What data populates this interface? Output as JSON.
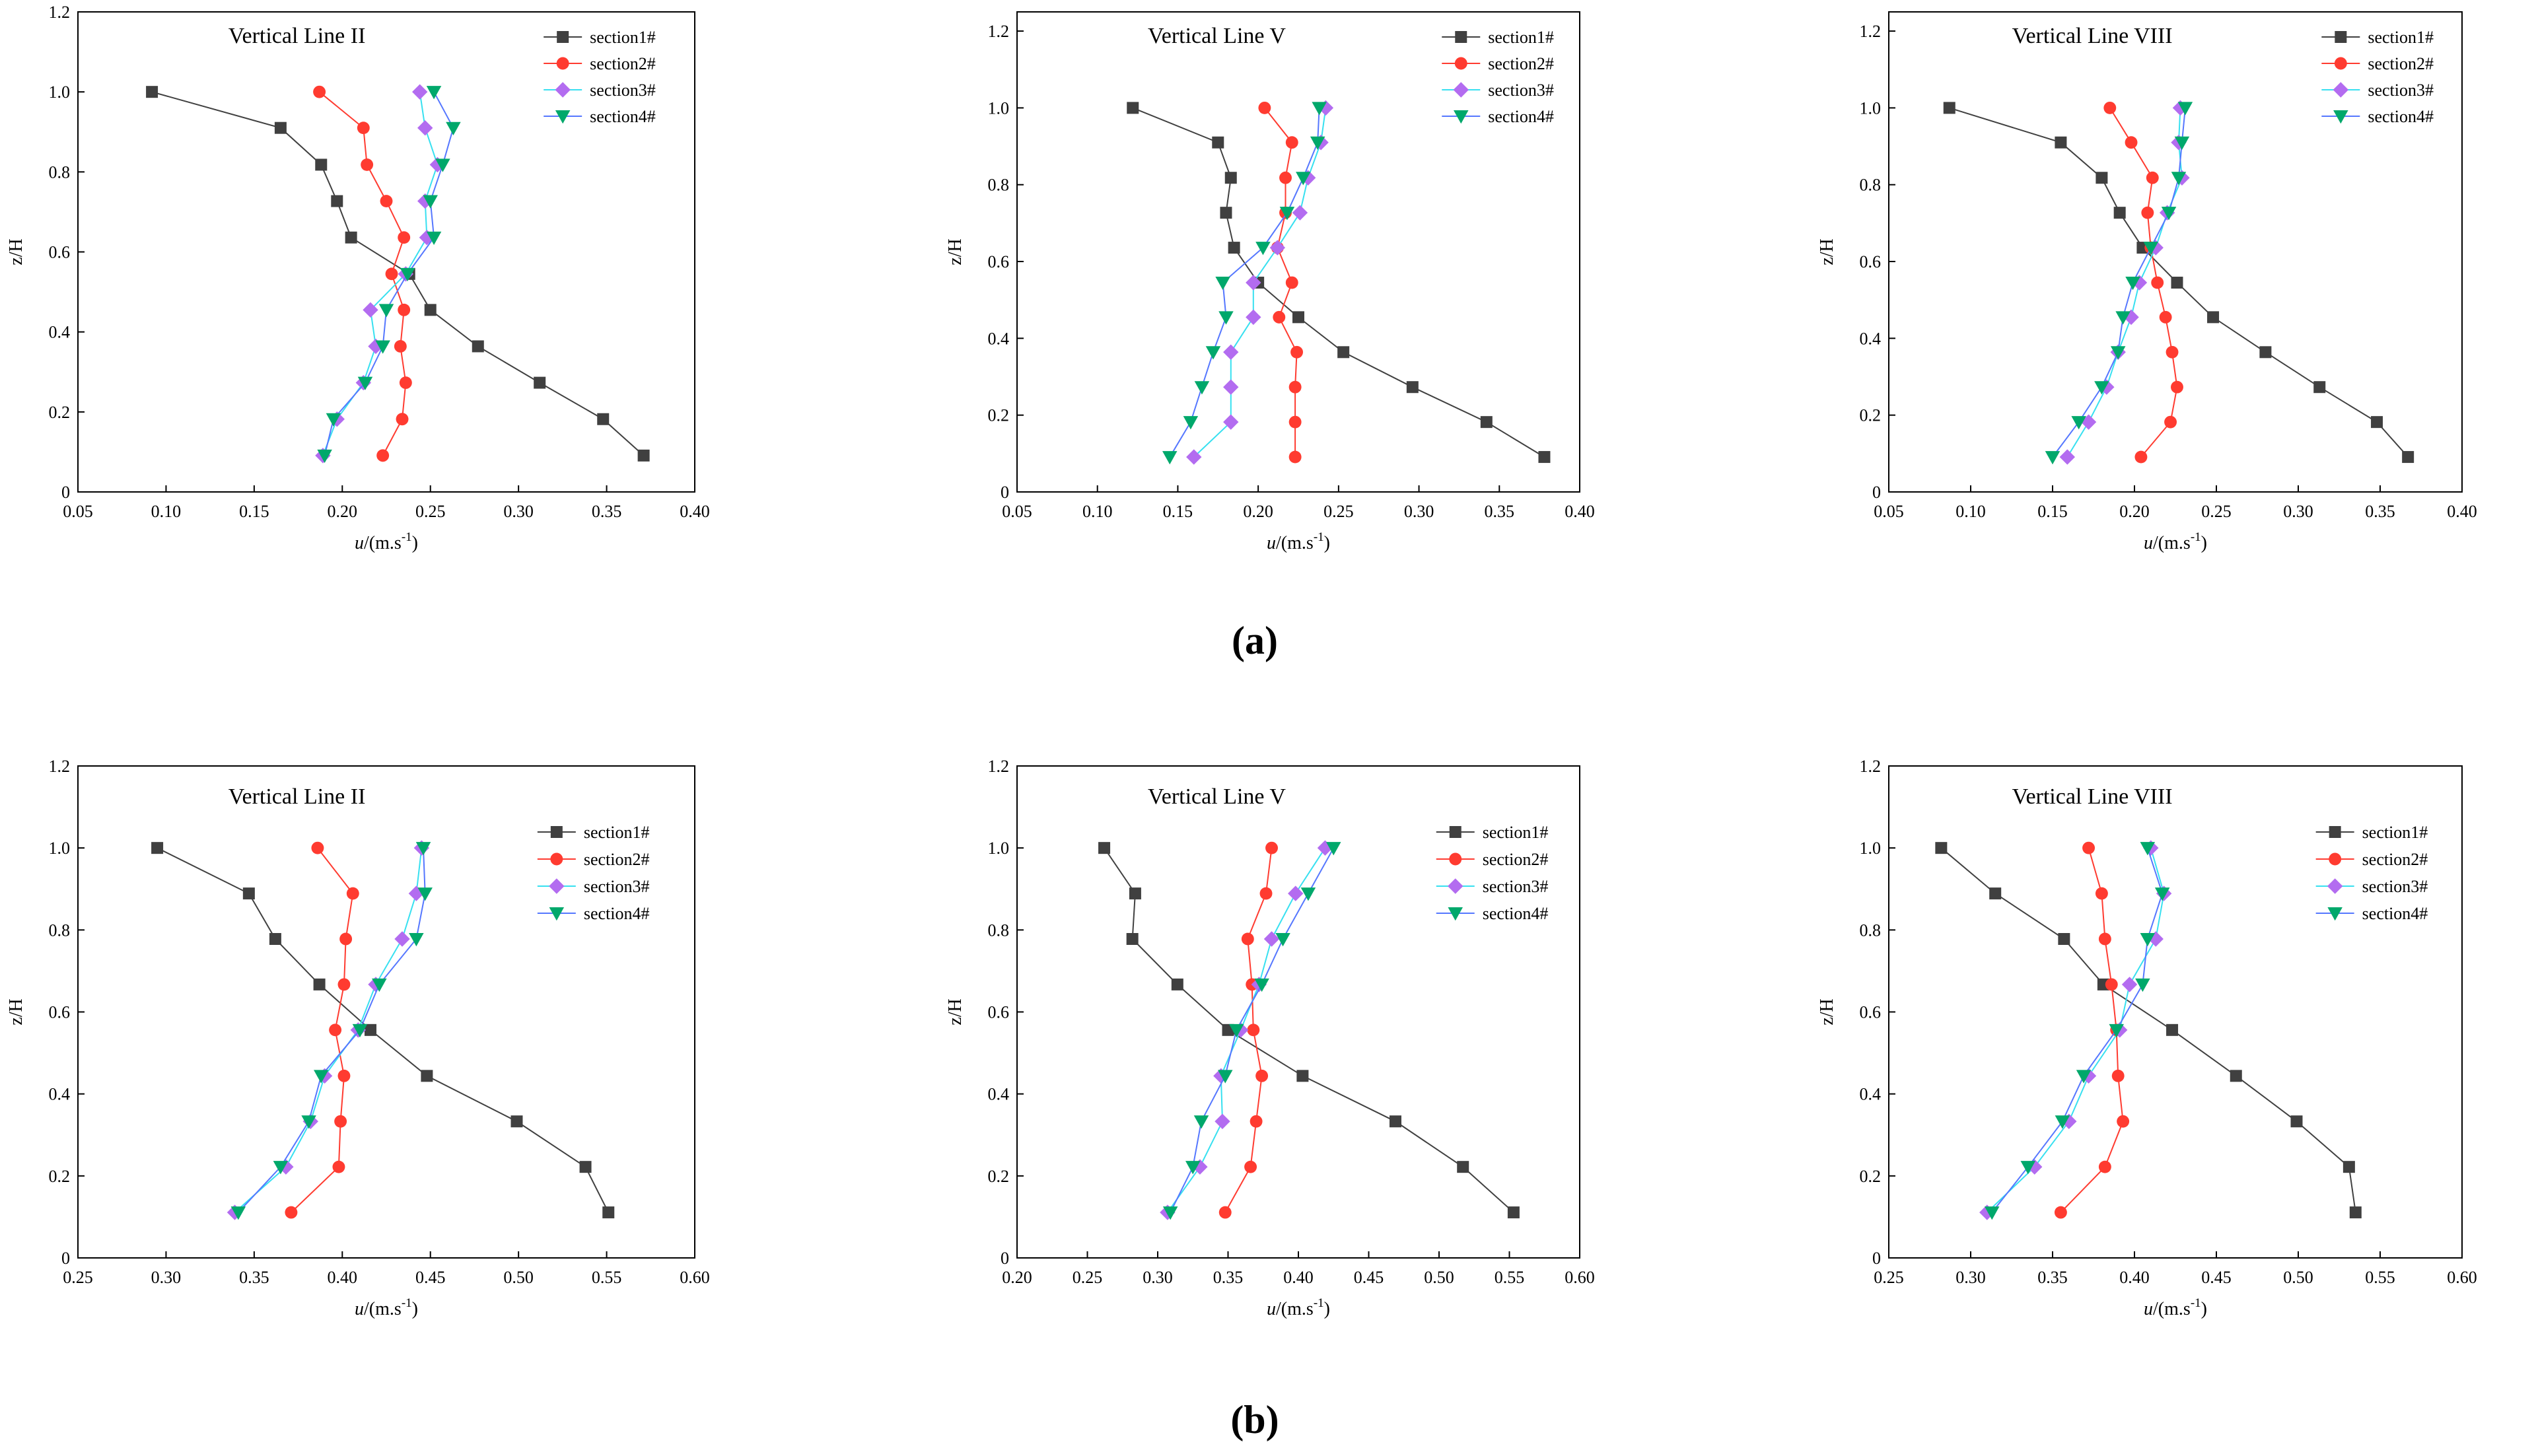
{
  "figure": {
    "label_a": "(a)",
    "label_b": "(b)"
  },
  "styles": {
    "series_colors": [
      "#404040",
      "#ff3b30",
      "#b36cf0",
      "#00a86b"
    ],
    "line_colors": [
      "#404040",
      "#ff3b30",
      "#37e0f0",
      "#5577ff"
    ],
    "markers": [
      "square",
      "circle",
      "diamond",
      "triangle-down"
    ]
  },
  "chart_data": [
    {
      "type": "line",
      "row": "a",
      "col": 0,
      "title": "Vertical Line II",
      "xlabel": "u/(m.s-1)",
      "ylabel": "z/H",
      "xlim": [
        0.05,
        0.4
      ],
      "ylim": [
        0,
        1.2
      ],
      "xticks": [
        0.05,
        0.1,
        0.15,
        0.2,
        0.25,
        0.3,
        0.35,
        0.4
      ],
      "yticks": [
        0,
        0.2,
        0.4,
        0.6,
        0.8,
        1.0,
        1.2
      ],
      "legend": "top-right",
      "y": [
        1.0,
        0.91,
        0.818,
        0.727,
        0.636,
        0.545,
        0.455,
        0.364,
        0.273,
        0.182,
        0.091
      ],
      "series": [
        {
          "name": "section1#",
          "x": [
            0.092,
            0.165,
            0.188,
            0.197,
            0.205,
            0.238,
            0.25,
            0.277,
            0.312,
            0.348,
            0.371
          ]
        },
        {
          "name": "section2#",
          "x": [
            0.187,
            0.212,
            0.214,
            0.225,
            0.235,
            0.228,
            0.235,
            0.233,
            0.236,
            0.234,
            0.223
          ]
        },
        {
          "name": "section3#",
          "x": [
            0.244,
            0.247,
            0.254,
            0.247,
            0.248,
            0.236,
            0.216,
            0.219,
            0.212,
            0.197,
            0.189
          ]
        },
        {
          "name": "section4#",
          "x": [
            0.252,
            0.263,
            0.257,
            0.25,
            0.252,
            0.237,
            0.225,
            0.223,
            0.213,
            0.195,
            0.19
          ]
        }
      ]
    },
    {
      "type": "line",
      "row": "a",
      "col": 1,
      "title": "Vertical Line V",
      "xlabel": "u/(m.s-1)",
      "ylabel": "z/H",
      "xlim": [
        0.05,
        0.4
      ],
      "ylim": [
        0,
        1.25
      ],
      "xticks": [
        0.05,
        0.1,
        0.15,
        0.2,
        0.25,
        0.3,
        0.35,
        0.4
      ],
      "yticks": [
        0,
        0.2,
        0.4,
        0.6,
        0.8,
        1.0,
        1.2
      ],
      "legend": "top-right",
      "y": [
        1.0,
        0.91,
        0.818,
        0.727,
        0.636,
        0.545,
        0.455,
        0.364,
        0.273,
        0.182,
        0.091
      ],
      "series": [
        {
          "name": "section1#",
          "x": [
            0.122,
            0.175,
            0.183,
            0.18,
            0.185,
            0.2,
            0.225,
            0.253,
            0.296,
            0.342,
            0.378
          ]
        },
        {
          "name": "section2#",
          "x": [
            0.204,
            0.221,
            0.217,
            0.217,
            0.212,
            0.221,
            0.213,
            0.224,
            0.223,
            0.223,
            0.223
          ]
        },
        {
          "name": "section3#",
          "x": [
            0.242,
            0.239,
            0.231,
            0.226,
            0.212,
            0.197,
            0.197,
            0.183,
            0.183,
            0.183,
            0.16
          ]
        },
        {
          "name": "section4#",
          "x": [
            0.238,
            0.237,
            0.228,
            0.218,
            0.203,
            0.178,
            0.18,
            0.172,
            0.165,
            0.158,
            0.145
          ]
        }
      ]
    },
    {
      "type": "line",
      "row": "a",
      "col": 2,
      "title": "Vertical Line VIII",
      "xlabel": "u/(m.s-1)",
      "ylabel": "z/H",
      "xlim": [
        0.05,
        0.4
      ],
      "ylim": [
        0,
        1.25
      ],
      "xticks": [
        0.05,
        0.1,
        0.15,
        0.2,
        0.25,
        0.3,
        0.35,
        0.4
      ],
      "yticks": [
        0,
        0.2,
        0.4,
        0.6,
        0.8,
        1.0,
        1.2
      ],
      "legend": "top-right",
      "y": [
        1.0,
        0.91,
        0.818,
        0.727,
        0.636,
        0.545,
        0.455,
        0.364,
        0.273,
        0.182,
        0.091
      ],
      "series": [
        {
          "name": "section1#",
          "x": [
            0.087,
            0.155,
            0.18,
            0.191,
            0.205,
            0.226,
            0.248,
            0.28,
            0.313,
            0.348,
            0.367
          ]
        },
        {
          "name": "section2#",
          "x": [
            0.185,
            0.198,
            0.211,
            0.208,
            0.21,
            0.214,
            0.219,
            0.223,
            0.226,
            0.222,
            0.204
          ]
        },
        {
          "name": "section3#",
          "x": [
            0.228,
            0.227,
            0.229,
            0.22,
            0.213,
            0.203,
            0.198,
            0.19,
            0.183,
            0.172,
            0.159
          ]
        },
        {
          "name": "section4#",
          "x": [
            0.231,
            0.229,
            0.227,
            0.221,
            0.21,
            0.199,
            0.193,
            0.19,
            0.18,
            0.166,
            0.15
          ]
        }
      ]
    },
    {
      "type": "line",
      "row": "b",
      "col": 0,
      "title": "Vertical Line II",
      "xlabel": "u/(m.s-1)",
      "ylabel": "z/H",
      "xlim": [
        0.25,
        0.6
      ],
      "ylim": [
        0,
        1.2
      ],
      "xticks": [
        0.25,
        0.3,
        0.35,
        0.4,
        0.45,
        0.5,
        0.55,
        0.6
      ],
      "yticks": [
        0,
        0.2,
        0.4,
        0.6,
        0.8,
        1.0,
        1.2
      ],
      "legend": "top-right",
      "y": [
        1.0,
        0.889,
        0.778,
        0.667,
        0.556,
        0.444,
        0.333,
        0.222,
        0.111
      ],
      "series": [
        {
          "name": "section1#",
          "x": [
            0.295,
            0.347,
            0.362,
            0.387,
            0.416,
            0.448,
            0.499,
            0.538,
            0.551
          ]
        },
        {
          "name": "section2#",
          "x": [
            0.386,
            0.406,
            0.402,
            0.401,
            0.396,
            0.401,
            0.399,
            0.398,
            0.371
          ]
        },
        {
          "name": "section3#",
          "x": [
            0.445,
            0.442,
            0.434,
            0.419,
            0.409,
            0.39,
            0.382,
            0.368,
            0.339
          ]
        },
        {
          "name": "section4#",
          "x": [
            0.446,
            0.447,
            0.442,
            0.421,
            0.41,
            0.388,
            0.381,
            0.365,
            0.341
          ]
        }
      ]
    },
    {
      "type": "line",
      "row": "b",
      "col": 1,
      "title": "Vertical Line V",
      "xlabel": "u/(m.s-1)",
      "ylabel": "z/H",
      "xlim": [
        0.2,
        0.6
      ],
      "ylim": [
        0,
        1.2
      ],
      "xticks": [
        0.2,
        0.25,
        0.3,
        0.35,
        0.4,
        0.45,
        0.5,
        0.55,
        0.6
      ],
      "yticks": [
        0,
        0.2,
        0.4,
        0.6,
        0.8,
        1.0,
        1.2
      ],
      "legend": "top-right",
      "y": [
        1.0,
        0.889,
        0.778,
        0.667,
        0.556,
        0.444,
        0.333,
        0.222,
        0.111
      ],
      "series": [
        {
          "name": "section1#",
          "x": [
            0.262,
            0.284,
            0.282,
            0.314,
            0.35,
            0.403,
            0.469,
            0.517,
            0.553
          ]
        },
        {
          "name": "section2#",
          "x": [
            0.381,
            0.377,
            0.364,
            0.367,
            0.368,
            0.374,
            0.37,
            0.366,
            0.348
          ]
        },
        {
          "name": "section3#",
          "x": [
            0.419,
            0.398,
            0.381,
            0.372,
            0.359,
            0.345,
            0.346,
            0.33,
            0.307
          ]
        },
        {
          "name": "section4#",
          "x": [
            0.425,
            0.407,
            0.389,
            0.374,
            0.356,
            0.348,
            0.331,
            0.325,
            0.309
          ]
        }
      ]
    },
    {
      "type": "line",
      "row": "b",
      "col": 2,
      "title": "Vertical Line VIII",
      "xlabel": "u/(m.s-1)",
      "ylabel": "z/H",
      "xlim": [
        0.25,
        0.6
      ],
      "ylim": [
        0,
        1.2
      ],
      "xticks": [
        0.25,
        0.3,
        0.35,
        0.4,
        0.45,
        0.5,
        0.55,
        0.6
      ],
      "yticks": [
        0,
        0.2,
        0.4,
        0.6,
        0.8,
        1.0,
        1.2
      ],
      "legend": "top-right",
      "y": [
        1.0,
        0.889,
        0.778,
        0.667,
        0.556,
        0.444,
        0.333,
        0.222,
        0.111
      ],
      "series": [
        {
          "name": "section1#",
          "x": [
            0.282,
            0.315,
            0.357,
            0.381,
            0.423,
            0.462,
            0.499,
            0.531,
            0.535
          ]
        },
        {
          "name": "section2#",
          "x": [
            0.372,
            0.38,
            0.382,
            0.386,
            0.389,
            0.39,
            0.393,
            0.382,
            0.355
          ]
        },
        {
          "name": "section3#",
          "x": [
            0.41,
            0.418,
            0.413,
            0.397,
            0.391,
            0.372,
            0.36,
            0.339,
            0.31
          ]
        },
        {
          "name": "section4#",
          "x": [
            0.408,
            0.417,
            0.408,
            0.405,
            0.389,
            0.369,
            0.356,
            0.335,
            0.313
          ]
        }
      ]
    }
  ]
}
